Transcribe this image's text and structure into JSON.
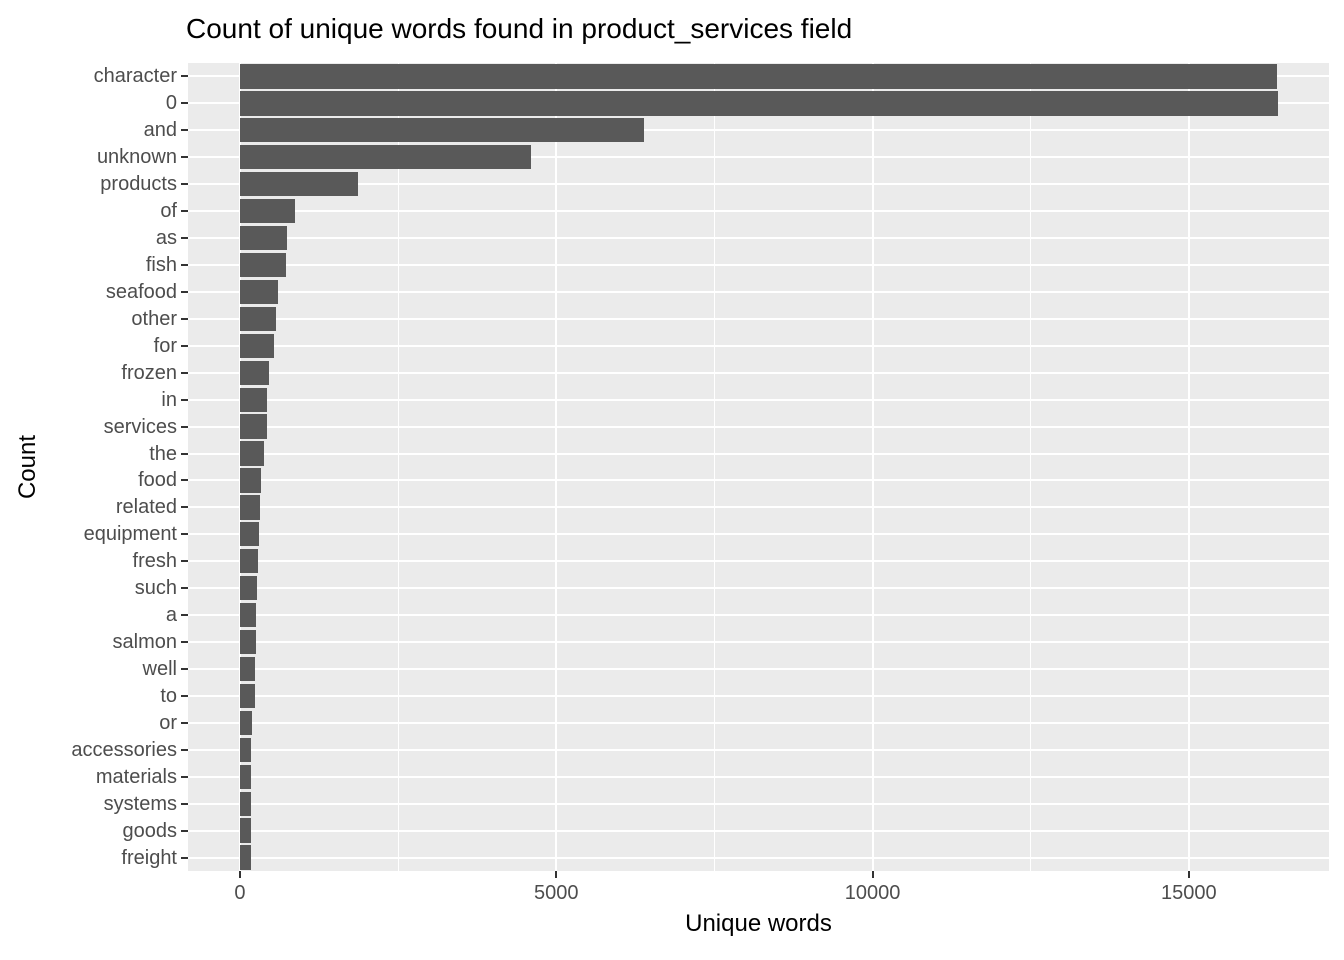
{
  "title": "Count of unique words found in product_services field",
  "axes": {
    "x_title": "Unique words",
    "y_title": "Count"
  },
  "chart_data": {
    "type": "bar",
    "orientation": "horizontal",
    "title": "Count of unique words found in product_services field",
    "xlabel": "Unique words",
    "ylabel": "Count",
    "categories": [
      "character",
      "0",
      "and",
      "unknown",
      "products",
      "of",
      "as",
      "fish",
      "seafood",
      "other",
      "for",
      "frozen",
      "in",
      "services",
      "the",
      "food",
      "related",
      "equipment",
      "fresh",
      "such",
      "a",
      "salmon",
      "well",
      "to",
      "or",
      "accessories",
      "materials",
      "systems",
      "goods",
      "freight"
    ],
    "values": [
      16400,
      16410,
      6390,
      4600,
      1860,
      870,
      740,
      725,
      610,
      565,
      540,
      460,
      435,
      432,
      375,
      330,
      325,
      310,
      280,
      265,
      255,
      250,
      240,
      235,
      185,
      180,
      175,
      173,
      170,
      168
    ],
    "x_ticks": [
      0,
      5000,
      10000,
      15000
    ],
    "x_tick_labels": [
      "0",
      "5000",
      "10000",
      "15000"
    ],
    "x_minor_ticks": [
      2500,
      7500,
      12500
    ],
    "xlim": [
      -820,
      17215
    ],
    "grid": true,
    "legend": false
  },
  "colors": {
    "bar": "#595959",
    "panel": "#EBEBEB",
    "grid": "#FFFFFF",
    "axis_text": "#4D4D4D",
    "tick_mark": "#333333",
    "title_text": "#000000",
    "background": "#FFFFFF"
  }
}
